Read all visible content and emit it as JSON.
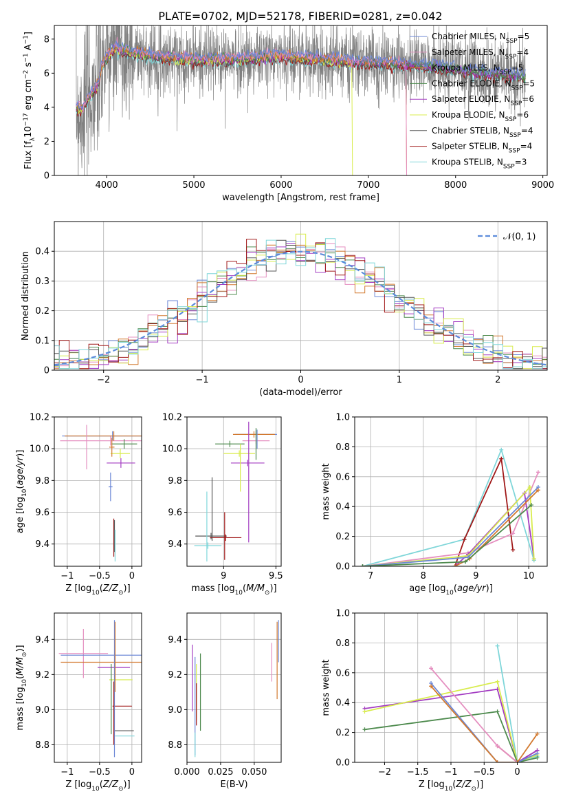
{
  "figure_title": "PLATE=0702, MJD=52178, FIBERID=0281, z=0.042",
  "colors": {
    "chabrier_miles": "#6b87d6",
    "salpeter_miles": "#e58fc0",
    "kroupa_miles": "#d2792f",
    "chabrier_elodie": "#4d8a4d",
    "salpeter_elodie": "#a33cc2",
    "kroupa_elodie": "#d8ec4c",
    "chabrier_stelib": "#555555",
    "salpeter_stelib": "#a01818",
    "kroupa_stelib": "#7fd6d9",
    "normal": "#5b8bdb",
    "grid": "#b0b0b0"
  },
  "chart_data": [
    {
      "type": "line",
      "xlabel": "wavelength [Angstrom, rest frame]",
      "ylabel": "Flux [f_λ10^-17 erg cm^-2 s^-1 A^-1]",
      "xlim": [
        3400,
        9050
      ],
      "ylim": [
        0,
        8.8
      ],
      "xticks": [
        4000,
        5000,
        6000,
        7000,
        8000,
        9000
      ],
      "yticks": [
        0,
        2,
        4,
        6,
        8
      ],
      "grid": false,
      "legend_location": "upper right",
      "series": [
        {
          "name": "Chabrier MILES, N_SSP=5",
          "color_key": "chabrier_miles"
        },
        {
          "name": "Salpeter MILES, N_SSP=4",
          "color_key": "salpeter_miles"
        },
        {
          "name": "Kroupa MILES, N_SSP=5",
          "color_key": "kroupa_miles"
        },
        {
          "name": "Chabrier ELODIE, N_SSP=5",
          "color_key": "chabrier_elodie"
        },
        {
          "name": "Salpeter ELODIE, N_SSP=6",
          "color_key": "salpeter_elodie"
        },
        {
          "name": "Kroupa ELODIE, N_SSP=6",
          "color_key": "kroupa_elodie"
        },
        {
          "name": "Chabrier STELIB, N_SSP=4",
          "color_key": "chabrier_stelib"
        },
        {
          "name": "Salpeter STELIB, N_SSP=4",
          "color_key": "salpeter_stelib"
        },
        {
          "name": "Kroupa STELIB, N_SSP=3",
          "color_key": "kroupa_stelib"
        }
      ],
      "continuum": {
        "x": [
          3650,
          3700,
          3800,
          3900,
          3950,
          4000,
          4100,
          4200,
          4500,
          5000,
          5500,
          6000,
          6500,
          7000,
          7500,
          8000,
          8500,
          8800
        ],
        "y": [
          4.0,
          3.8,
          4.6,
          5.4,
          6.5,
          6.9,
          7.5,
          7.3,
          7.0,
          6.8,
          6.8,
          7.0,
          6.8,
          6.6,
          6.5,
          6.2,
          5.9,
          5.8
        ]
      },
      "series_cutoffs": {
        "kroupa_elodie": 6810,
        "kroupa_miles": 7430,
        "salpeter_miles": 7430
      }
    },
    {
      "type": "histogram",
      "xlabel": "(data-model)/error",
      "ylabel": "Normed distribution",
      "xlim": [
        -2.5,
        2.5
      ],
      "ylim": [
        0,
        0.5
      ],
      "xticks": [
        -2,
        -1,
        0,
        1,
        2
      ],
      "yticks": [
        0.0,
        0.1,
        0.2,
        0.3,
        0.4
      ],
      "grid": true,
      "legend_location": "upper right",
      "legend": [
        "𝒩(0, 1)"
      ],
      "bin_width": 0.1
    },
    {
      "type": "errorbar",
      "xlabel": "Z [log10(Z/Z⊙)]",
      "ylabel": "age [log10(age/yr)]",
      "xlim": [
        -1.2,
        0.15
      ],
      "ylim": [
        9.26,
        10.2
      ],
      "xticks": [
        -1.0,
        -0.5,
        0.0
      ],
      "yticks": [
        9.4,
        9.6,
        9.8,
        10.0,
        10.2
      ],
      "points": [
        {
          "c": "chabrier_miles",
          "x": -0.3,
          "xerr": 0.78,
          "y": 10.08,
          "yerr": 0.03
        },
        {
          "c": "salpeter_miles",
          "x": -0.33,
          "xerr": 0.78,
          "y": 10.05,
          "yerr": 0.03
        },
        {
          "c": "kroupa_miles",
          "x": -0.28,
          "xerr": 0.76,
          "y": 10.08,
          "yerr": 0.03
        },
        {
          "c": "chabrier_elodie",
          "x": -0.12,
          "xerr": 0.2,
          "y": 10.03,
          "yerr": 0.03
        },
        {
          "c": "salpeter_elodie",
          "x": -0.17,
          "xerr": 0.22,
          "y": 9.91,
          "yerr": 0.03
        },
        {
          "c": "kroupa_elodie",
          "x": -0.18,
          "xerr": 0.15,
          "y": 9.97,
          "yerr": 0.03
        },
        {
          "c": "salpeter_stelib",
          "x": -0.28,
          "xerr": 0.0,
          "y": 9.44,
          "yerr": 0.12
        },
        {
          "c": "chabrier_stelib",
          "x": -0.27,
          "xerr": 0.0,
          "y": 9.45,
          "yerr": 0.1
        },
        {
          "c": "kroupa_stelib",
          "x": -0.26,
          "xerr": 0.0,
          "y": 9.39,
          "yerr": 0.1
        },
        {
          "c": "salpeter_miles",
          "x": -0.7,
          "xerr": 0.0,
          "y": 10.01,
          "yerr": 0.14
        },
        {
          "c": "kroupa_miles",
          "x": -0.31,
          "xerr": 0.04,
          "y": 10.01,
          "yerr": 0.06
        },
        {
          "c": "chabrier_miles",
          "x": -0.33,
          "xerr": 0.03,
          "y": 9.76,
          "yerr": 0.09
        }
      ]
    },
    {
      "type": "errorbar",
      "xlabel": "mass [log10(M/M⊙)]",
      "ylabel": "",
      "xlim": [
        8.65,
        9.55
      ],
      "ylim": [
        9.26,
        10.2
      ],
      "xticks": [
        9.0,
        9.5
      ],
      "yticks": [
        9.4,
        9.6,
        9.8,
        10.0,
        10.2
      ],
      "points": [
        {
          "c": "chabrier_miles",
          "x": 9.31,
          "xerr": 0.2,
          "y": 10.09,
          "yerr": 0.02
        },
        {
          "c": "kroupa_miles",
          "x": 9.29,
          "xerr": 0.2,
          "y": 10.09,
          "yerr": 0.02
        },
        {
          "c": "salpeter_miles",
          "x": 9.31,
          "xerr": 0.13,
          "y": 10.05,
          "yerr": 0.02
        },
        {
          "c": "chabrier_elodie",
          "x": 9.06,
          "xerr": 0.14,
          "y": 10.03,
          "yerr": 0.02
        },
        {
          "c": "kroupa_elodie",
          "x": 9.15,
          "xerr": 0.15,
          "y": 9.97,
          "yerr": 0.02
        },
        {
          "c": "salpeter_elodie",
          "x": 9.23,
          "xerr": 0.16,
          "y": 9.91,
          "yerr": 0.02
        },
        {
          "c": "chabrier_stelib",
          "x": 8.88,
          "xerr": 0.15,
          "y": 9.45,
          "yerr": 0.02
        },
        {
          "c": "salpeter_stelib",
          "x": 9.02,
          "xerr": 0.15,
          "y": 9.44,
          "yerr": 0.02
        },
        {
          "c": "kroupa_stelib",
          "x": 8.85,
          "xerr": 0.13,
          "y": 9.39,
          "yerr": 0.02
        },
        {
          "c": "kroupa_stelib",
          "x": 8.84,
          "xerr": 0.0,
          "y": 9.51,
          "yerr": 0.22
        },
        {
          "c": "chabrier_stelib",
          "x": 8.89,
          "xerr": 0.0,
          "y": 9.62,
          "yerr": 0.2
        },
        {
          "c": "salpeter_stelib",
          "x": 9.01,
          "xerr": 0.0,
          "y": 9.45,
          "yerr": 0.15
        },
        {
          "c": "kroupa_elodie",
          "x": 9.16,
          "xerr": 0.0,
          "y": 9.88,
          "yerr": 0.15
        },
        {
          "c": "salpeter_elodie",
          "x": 9.24,
          "xerr": 0.0,
          "y": 9.79,
          "yerr": 0.38
        },
        {
          "c": "chabrier_elodie",
          "x": 9.31,
          "xerr": 0.0,
          "y": 10.03,
          "yerr": 0.1
        },
        {
          "c": "chabrier_miles",
          "x": 9.32,
          "xerr": 0.0,
          "y": 10.06,
          "yerr": 0.06
        }
      ]
    },
    {
      "type": "line",
      "xlabel": "age [log10(age/yr)]",
      "ylabel": "mass weight",
      "xlim": [
        6.7,
        10.35
      ],
      "ylim": [
        0,
        1.0
      ],
      "xticks": [
        7,
        8,
        9,
        10
      ],
      "yticks": [
        0.0,
        0.2,
        0.4,
        0.6,
        0.8,
        1.0
      ],
      "grid": true,
      "series": [
        {
          "c": "kroupa_stelib",
          "x": [
            6.85,
            8.78,
            9.48,
            10.1
          ],
          "y": [
            0.0,
            0.18,
            0.78,
            0.04
          ]
        },
        {
          "c": "salpeter_stelib",
          "x": [
            8.6,
            8.78,
            9.48,
            9.7
          ],
          "y": [
            0.0,
            0.18,
            0.72,
            0.11
          ]
        },
        {
          "c": "salpeter_miles",
          "x": [
            6.85,
            8.85,
            9.7,
            10.18
          ],
          "y": [
            0.0,
            0.09,
            0.22,
            0.63
          ]
        },
        {
          "c": "salpeter_elodie",
          "x": [
            8.6,
            8.85,
            9.92,
            10.1
          ],
          "y": [
            0.0,
            0.08,
            0.49,
            0.05
          ]
        },
        {
          "c": "kroupa_elodie",
          "x": [
            6.85,
            8.85,
            10.02,
            10.1
          ],
          "y": [
            0.0,
            0.07,
            0.53,
            0.05
          ]
        },
        {
          "c": "chabrier_miles",
          "x": [
            6.85,
            8.85,
            10.18
          ],
          "y": [
            0.0,
            0.06,
            0.53
          ]
        },
        {
          "c": "kroupa_miles",
          "x": [
            8.6,
            8.88,
            10.18
          ],
          "y": [
            0.0,
            0.05,
            0.51
          ]
        },
        {
          "c": "chabrier_elodie",
          "x": [
            6.85,
            8.8,
            10.05
          ],
          "y": [
            0.0,
            0.03,
            0.41
          ]
        }
      ]
    },
    {
      "type": "errorbar",
      "xlabel": "Z [log10(Z/Z⊙)]",
      "ylabel": "mass [log10(M/M⊙)]",
      "xlim": [
        -1.2,
        0.15
      ],
      "ylim": [
        8.7,
        9.55
      ],
      "xticks": [
        -1.0,
        -0.5,
        0.0
      ],
      "yticks": [
        8.8,
        9.0,
        9.2,
        9.4
      ],
      "points": [
        {
          "c": "salpeter_miles",
          "x": -0.75,
          "xerr": 0.38,
          "y": 9.32,
          "yerr": 0.14
        },
        {
          "c": "chabrier_miles",
          "x": -0.45,
          "xerr": 0.65,
          "y": 9.31,
          "yerr": 0.0
        },
        {
          "c": "kroupa_miles",
          "x": -0.45,
          "xerr": 0.65,
          "y": 9.27,
          "yerr": 0.0
        },
        {
          "c": "salpeter_elodie",
          "x": -0.28,
          "xerr": 0.25,
          "y": 9.24,
          "yerr": 0.0
        },
        {
          "c": "kroupa_elodie",
          "x": -0.17,
          "xerr": 0.18,
          "y": 9.17,
          "yerr": 0.0
        },
        {
          "c": "salpeter_stelib",
          "x": -0.15,
          "xerr": 0.15,
          "y": 9.02,
          "yerr": 0.0
        },
        {
          "c": "chabrier_stelib",
          "x": -0.12,
          "xerr": 0.15,
          "y": 8.88,
          "yerr": 0.0
        },
        {
          "c": "kroupa_stelib",
          "x": -0.11,
          "xerr": 0.15,
          "y": 8.85,
          "yerr": 0.0
        },
        {
          "c": "chabrier_miles",
          "x": -0.27,
          "xerr": 0.0,
          "y": 9.12,
          "yerr": 0.39
        },
        {
          "c": "salpeter_stelib",
          "x": -0.28,
          "xerr": 0.0,
          "y": 8.98,
          "yerr": 0.18
        },
        {
          "c": "chabrier_elodie",
          "x": -0.32,
          "xerr": 0.0,
          "y": 9.06,
          "yerr": 0.2
        },
        {
          "c": "kroupa_miles",
          "x": -0.26,
          "xerr": 0.0,
          "y": 9.3,
          "yerr": 0.2
        }
      ]
    },
    {
      "type": "errorbar",
      "xlabel": "E(B-V)",
      "ylabel": "",
      "xlim": [
        0.0,
        0.07
      ],
      "ylim": [
        8.7,
        9.55
      ],
      "xticks": [
        0.0,
        0.025,
        0.05
      ],
      "xticklabels": [
        "0.000",
        "0.025",
        "0.050"
      ],
      "yticks": [
        8.8,
        9.0,
        9.2,
        9.4
      ],
      "points": [
        {
          "c": "salpeter_elodie",
          "x": 0.004,
          "xerr": 0.0,
          "y": 9.18,
          "yerr": 0.19
        },
        {
          "c": "chabrier_miles",
          "x": 0.006,
          "xerr": 0.0,
          "y": 9.02,
          "yerr": 0.28
        },
        {
          "c": "kroupa_elodie",
          "x": 0.007,
          "xerr": 0.0,
          "y": 9.1,
          "yerr": 0.16
        },
        {
          "c": "salpeter_stelib",
          "x": 0.007,
          "xerr": 0.0,
          "y": 9.03,
          "yerr": 0.12
        },
        {
          "c": "chabrier_elodie",
          "x": 0.01,
          "xerr": 0.0,
          "y": 9.1,
          "yerr": 0.22
        },
        {
          "c": "kroupa_stelib",
          "x": 0.006,
          "xerr": 0.0,
          "y": 8.8,
          "yerr": 0.07
        },
        {
          "c": "salpeter_miles",
          "x": 0.063,
          "xerr": 0.0,
          "y": 9.27,
          "yerr": 0.11
        },
        {
          "c": "kroupa_miles",
          "x": 0.067,
          "xerr": 0.0,
          "y": 9.28,
          "yerr": 0.22
        },
        {
          "c": "chabrier_miles",
          "x": 0.068,
          "xerr": 0.0,
          "y": 9.39,
          "yerr": 0.12
        }
      ]
    },
    {
      "type": "line",
      "xlabel": "Z [log10(Z/Z⊙)]",
      "ylabel": "mass weight",
      "xlim": [
        -2.45,
        0.45
      ],
      "ylim": [
        0,
        1.0
      ],
      "xticks": [
        -2.0,
        -1.5,
        -1.0,
        -0.5,
        0.0
      ],
      "yticks": [
        0.0,
        0.2,
        0.4,
        0.6,
        0.8,
        1.0
      ],
      "grid": true,
      "series": [
        {
          "c": "kroupa_stelib",
          "x": [
            -0.3,
            0.0,
            0.3
          ],
          "y": [
            0.78,
            0.0,
            0.04
          ]
        },
        {
          "c": "salpeter_stelib",
          "x": [
            -0.3,
            0.0,
            0.3
          ],
          "y": [
            0.11,
            0.0,
            0.08
          ]
        },
        {
          "c": "salpeter_elodie",
          "x": [
            -2.3,
            -0.3,
            0.0,
            0.3
          ],
          "y": [
            0.36,
            0.49,
            0.0,
            0.08
          ]
        },
        {
          "c": "kroupa_elodie",
          "x": [
            -2.3,
            -0.3,
            0.0,
            0.3
          ],
          "y": [
            0.34,
            0.54,
            0.0,
            0.05
          ]
        },
        {
          "c": "chabrier_elodie",
          "x": [
            -2.3,
            -0.3,
            0.0,
            0.3
          ],
          "y": [
            0.22,
            0.34,
            0.0,
            0.03
          ]
        },
        {
          "c": "salpeter_miles",
          "x": [
            -1.3,
            -0.3,
            0.0
          ],
          "y": [
            0.63,
            0.11,
            0.0
          ]
        },
        {
          "c": "chabrier_miles",
          "x": [
            -1.3,
            -0.3,
            0.0,
            0.3
          ],
          "y": [
            0.53,
            0.0,
            0.0,
            0.06
          ]
        },
        {
          "c": "kroupa_miles",
          "x": [
            -1.3,
            -0.3,
            0.0,
            0.3
          ],
          "y": [
            0.51,
            0.0,
            0.0,
            0.19
          ]
        }
      ]
    }
  ]
}
